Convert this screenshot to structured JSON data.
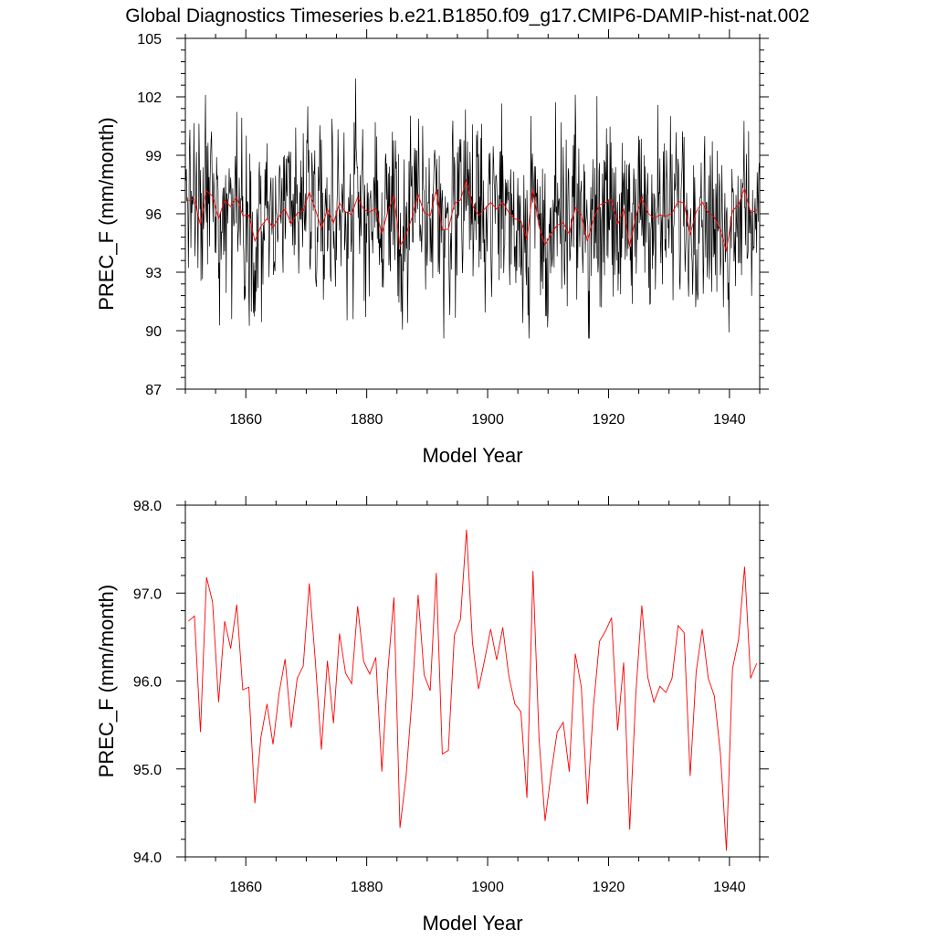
{
  "page": {
    "title": "Global Diagnostics Timeseries b.e21.B1850.f09_g17.CMIP6-DAMIP-hist-nat.002"
  },
  "colors": {
    "monthly_line": "#000000",
    "annual_line": "#ff0000",
    "axes": "#000000",
    "background": "#ffffff"
  },
  "chart_data": [
    {
      "type": "line",
      "xlabel": "Model Year",
      "ylabel": "PREC_F (mm/month)",
      "xlim": [
        1850,
        1945
      ],
      "ylim": [
        87,
        105
      ],
      "xticks": [
        1860,
        1880,
        1900,
        1920,
        1940
      ],
      "yticks": [
        87,
        90,
        93,
        96,
        99,
        102,
        105
      ],
      "ytick_labels": [
        "87",
        "90",
        "93",
        "96",
        "99",
        "102",
        "105"
      ],
      "grid": false,
      "series": [
        {
          "kind": "monthly",
          "color": "#000000",
          "x_start": 1850.0,
          "x_step": 0.08333,
          "count": 1140,
          "mean": 96.2,
          "min": 89.6,
          "max": 103.0
        },
        {
          "kind": "annual",
          "color": "#ff0000",
          "x_start": 1850.5,
          "x_step": 1,
          "values": "annual"
        }
      ]
    },
    {
      "type": "line",
      "xlabel": "Model Year",
      "ylabel": "PREC_F (mm/month)",
      "xlim": [
        1850,
        1945
      ],
      "ylim": [
        94.0,
        98.0
      ],
      "xticks": [
        1860,
        1880,
        1900,
        1920,
        1940
      ],
      "yticks": [
        94,
        95,
        96,
        97,
        98
      ],
      "ytick_labels": [
        "94.0",
        "95.0",
        "96.0",
        "97.0",
        "98.0"
      ],
      "grid": false,
      "series": [
        {
          "kind": "annual",
          "color": "#ff0000",
          "x_start": 1850.5,
          "x_step": 1,
          "values": "annual"
        }
      ]
    }
  ],
  "annual": [
    96.68,
    96.74,
    95.42,
    97.18,
    96.9,
    95.76,
    96.68,
    96.37,
    96.87,
    95.9,
    95.93,
    94.61,
    95.36,
    95.74,
    95.28,
    95.86,
    96.25,
    95.47,
    96.03,
    96.17,
    97.11,
    96.23,
    95.22,
    96.23,
    95.52,
    96.54,
    96.09,
    95.97,
    96.85,
    96.22,
    96.08,
    96.27,
    94.97,
    96.12,
    96.95,
    94.33,
    94.91,
    95.81,
    96.98,
    96.07,
    95.89,
    97.23,
    95.17,
    95.21,
    96.52,
    96.7,
    97.72,
    96.43,
    95.91,
    96.24,
    96.59,
    96.24,
    96.61,
    96.06,
    95.74,
    95.65,
    94.67,
    97.25,
    95.35,
    94.41,
    94.95,
    95.42,
    95.53,
    94.97,
    96.31,
    95.93,
    94.6,
    95.71,
    96.45,
    96.57,
    96.72,
    95.44,
    96.21,
    94.31,
    95.84,
    96.86,
    96.04,
    95.76,
    95.94,
    95.87,
    96.03,
    96.63,
    96.55,
    94.92,
    96.11,
    96.59,
    96.03,
    95.83,
    95.18,
    94.07,
    96.14,
    96.47,
    97.3,
    96.03,
    96.2
  ]
}
